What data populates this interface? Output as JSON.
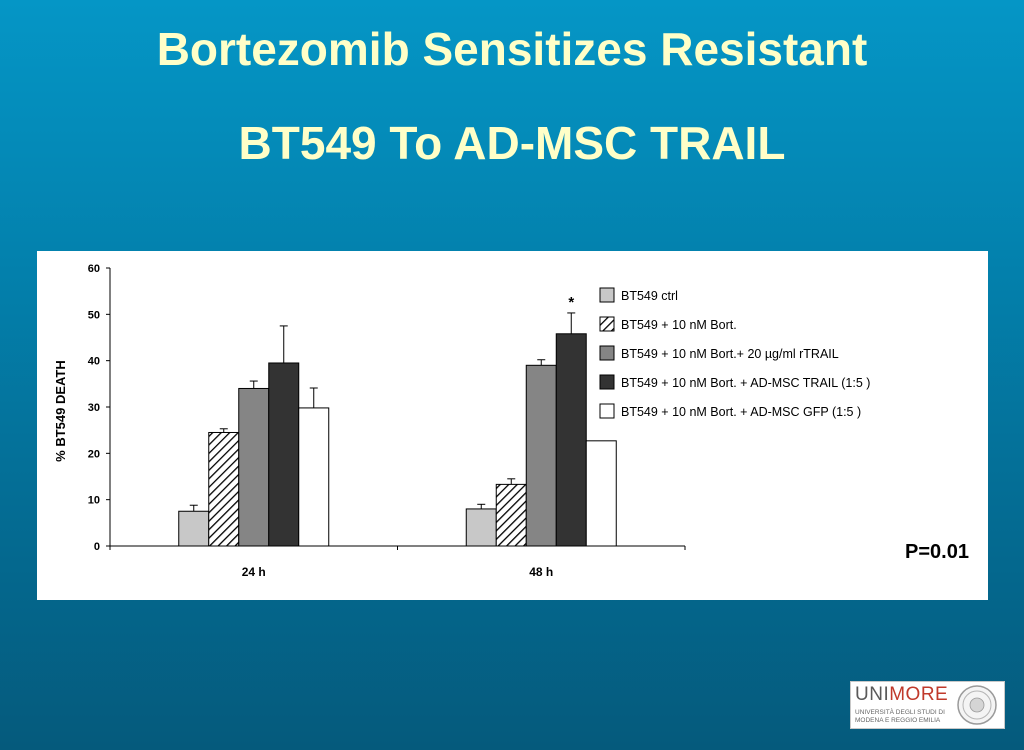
{
  "slide": {
    "title_line1": "Bortezomib Sensitizes Resistant",
    "title_line2": "BT549 To AD-MSC TRAIL",
    "p_value": "P=0.01"
  },
  "logo": {
    "word_part1": "UNI",
    "word_part2": "MORE",
    "sub_line1": "UNIVERSITÀ DEGLI STUDI DI",
    "sub_line2": "MODENA E REGGIO EMILIA",
    "colors": {
      "uni": "#5a5a5a",
      "more": "#c0392b"
    }
  },
  "chart_data": {
    "type": "bar",
    "categories": [
      "24 h",
      "48 h"
    ],
    "ylabel": "% BT549 DEATH",
    "ylim": [
      0,
      60
    ],
    "yticks": [
      0,
      10,
      20,
      30,
      40,
      50,
      60
    ],
    "legend_position": "top-right",
    "series": [
      {
        "name": "BT549 ctrl",
        "values": [
          7.5,
          8
        ],
        "errors": [
          1.3,
          1
        ],
        "fill": "#c8c8c8",
        "pattern": "none"
      },
      {
        "name": "BT549 + 10 nM Bort.",
        "values": [
          24.5,
          13.3
        ],
        "errors": [
          0.8,
          1.2
        ],
        "fill": "#ffffff",
        "pattern": "hatch"
      },
      {
        "name": "BT549 + 10 nM Bort.+ 20 µg/ml rTRAIL",
        "values": [
          34,
          39
        ],
        "errors": [
          1.6,
          1.2
        ],
        "fill": "#858585",
        "pattern": "none"
      },
      {
        "name": "BT549 + 10 nM Bort. + AD-MSC TRAIL (1:5 )",
        "values": [
          39.5,
          45.8
        ],
        "errors": [
          8,
          4.5
        ],
        "fill": "#333333",
        "pattern": "none"
      },
      {
        "name": "BT549 + 10 nM Bort. + AD-MSC  GFP (1:5 )",
        "values": [
          29.8,
          22.7
        ],
        "errors": [
          4.3,
          0
        ],
        "fill": "#ffffff",
        "pattern": "none"
      }
    ],
    "annotations": [
      {
        "text": "*",
        "category": "48 h",
        "series": 3
      }
    ]
  }
}
